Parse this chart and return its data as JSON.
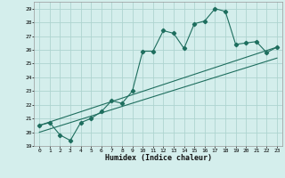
{
  "xlabel": "Humidex (Indice chaleur)",
  "bg_color": "#d4eeec",
  "grid_color": "#aed4d0",
  "line_color": "#1e6e5e",
  "xlim": [
    -0.5,
    23.5
  ],
  "ylim": [
    19.0,
    29.5
  ],
  "xticks": [
    0,
    1,
    2,
    3,
    4,
    5,
    6,
    7,
    8,
    9,
    10,
    11,
    12,
    13,
    14,
    15,
    16,
    17,
    18,
    19,
    20,
    21,
    22,
    23
  ],
  "yticks": [
    19,
    20,
    21,
    22,
    23,
    24,
    25,
    26,
    27,
    28,
    29
  ],
  "series1_x": [
    0,
    1,
    2,
    3,
    4,
    5,
    6,
    7,
    8,
    9,
    10,
    11,
    12,
    13,
    14,
    15,
    16,
    17,
    18,
    19,
    20,
    21,
    22,
    23
  ],
  "series1_y": [
    20.5,
    20.7,
    19.8,
    19.4,
    20.7,
    21.0,
    21.5,
    22.3,
    22.1,
    23.0,
    25.9,
    25.9,
    27.4,
    27.2,
    26.1,
    27.9,
    28.1,
    29.0,
    28.8,
    26.4,
    26.5,
    26.6,
    25.8,
    26.2
  ],
  "series2_x": [
    0,
    23
  ],
  "series2_y": [
    20.5,
    26.2
  ],
  "series3_x": [
    0,
    23
  ],
  "series3_y": [
    20.0,
    25.4
  ]
}
